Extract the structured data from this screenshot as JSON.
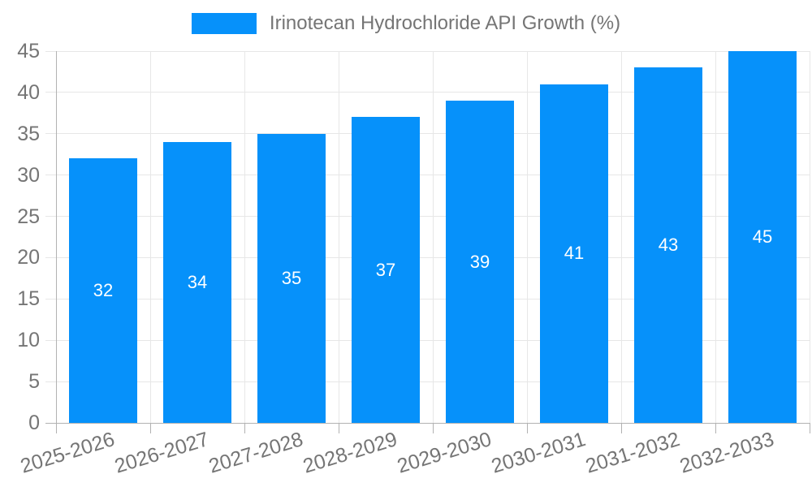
{
  "legend": {
    "label": "Irinotecan Hydrochloride API Growth (%)"
  },
  "chart_data": {
    "type": "bar",
    "title": "Irinotecan Hydrochloride API Growth (%)",
    "categories": [
      "2025-2026",
      "2026-2027",
      "2027-2028",
      "2028-2029",
      "2029-2030",
      "2030-2031",
      "2031-2032",
      "2032-2033"
    ],
    "values": [
      32,
      34,
      35,
      37,
      39,
      41,
      43,
      45
    ],
    "xlabel": "",
    "ylabel": "",
    "ylim": [
      0,
      45
    ],
    "ytick_step": 5,
    "yticks": [
      0,
      5,
      10,
      15,
      20,
      25,
      30,
      35,
      40,
      45
    ],
    "grid": true,
    "legend_position": "top",
    "x_tick_rotation_deg": -17,
    "colors": {
      "bar": "#0691fa",
      "value_label": "#ffffff",
      "tick_label": "#757575",
      "legend_text": "#757575",
      "gridline": "#e7e7e7",
      "axis_line": "#b2b2b2",
      "background": "#ffffff"
    }
  }
}
